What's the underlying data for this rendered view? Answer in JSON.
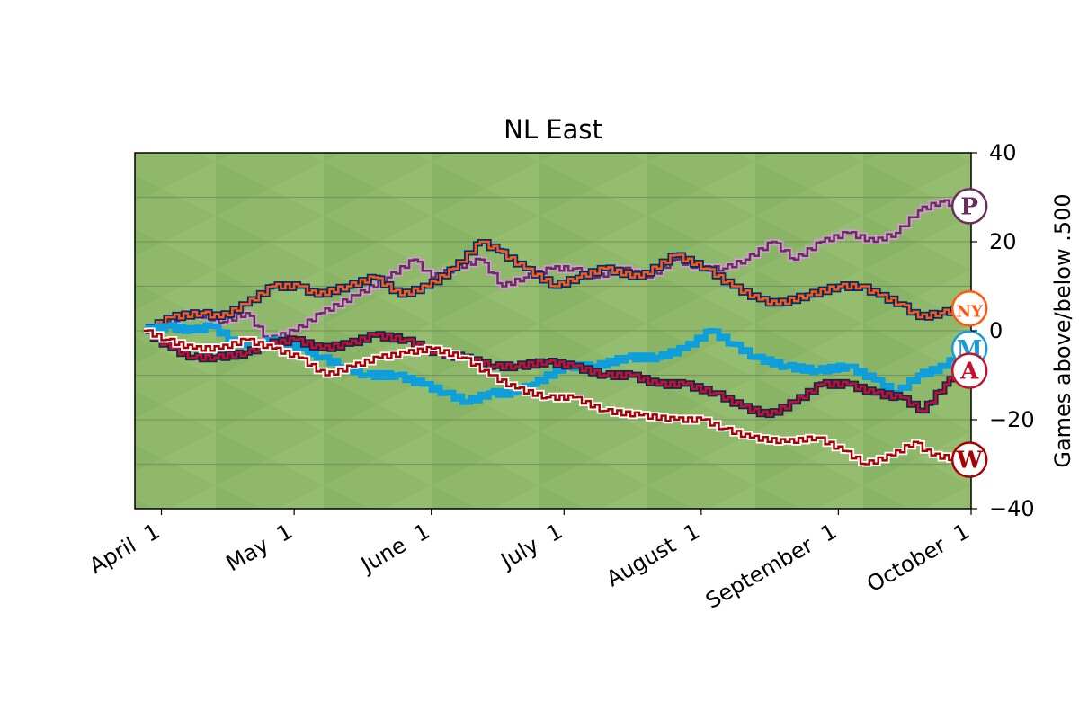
{
  "chart_data": {
    "type": "line",
    "title": "NL East",
    "ylabel": "Games above/below .500",
    "xlabel": "",
    "ylim": [
      -40,
      40
    ],
    "xlim": [
      "2019-03-26",
      "2019-10-01"
    ],
    "y_ticks": [
      40,
      20,
      0,
      -20,
      -40
    ],
    "y_tick_labels": [
      "40",
      "20",
      "0",
      "−20",
      "−40"
    ],
    "x_ticks": [
      "2019-04-01",
      "2019-05-01",
      "2019-06-01",
      "2019-07-01",
      "2019-08-01",
      "2019-09-01",
      "2019-10-01"
    ],
    "x_tick_labels": [
      "April  1",
      "May  1",
      "June  1",
      "July  1",
      "August  1",
      "September  1",
      "October  1"
    ],
    "grid": "horizontal",
    "background": "outfield grass",
    "series": [
      {
        "team": "Phillies",
        "logo_glyph": "P",
        "color": "#6b2d5c",
        "outline": "#c8a2c8",
        "end_label_icon": "phillies-logo-icon",
        "points": [
          [
            "2019-03-28",
            0
          ],
          [
            "2019-04-02",
            2
          ],
          [
            "2019-04-08",
            4
          ],
          [
            "2019-04-15",
            2
          ],
          [
            "2019-04-20",
            4
          ],
          [
            "2019-04-25",
            -2
          ],
          [
            "2019-05-01",
            0
          ],
          [
            "2019-05-07",
            4
          ],
          [
            "2019-05-15",
            8
          ],
          [
            "2019-05-22",
            12
          ],
          [
            "2019-05-28",
            16
          ],
          [
            "2019-06-01",
            12
          ],
          [
            "2019-06-06",
            14
          ],
          [
            "2019-06-12",
            16
          ],
          [
            "2019-06-17",
            10
          ],
          [
            "2019-06-22",
            12
          ],
          [
            "2019-06-28",
            14
          ],
          [
            "2019-07-03",
            14
          ],
          [
            "2019-07-08",
            12
          ],
          [
            "2019-07-14",
            14
          ],
          [
            "2019-07-20",
            12
          ],
          [
            "2019-07-26",
            16
          ],
          [
            "2019-08-01",
            14
          ],
          [
            "2019-08-06",
            14
          ],
          [
            "2019-08-11",
            16
          ],
          [
            "2019-08-17",
            20
          ],
          [
            "2019-08-22",
            16
          ],
          [
            "2019-08-28",
            20
          ],
          [
            "2019-09-03",
            22
          ],
          [
            "2019-09-09",
            20
          ],
          [
            "2019-09-14",
            22
          ],
          [
            "2019-09-19",
            27
          ],
          [
            "2019-09-24",
            29
          ],
          [
            "2019-09-29",
            28
          ]
        ]
      },
      {
        "team": "Mets",
        "logo_glyph": "NY",
        "color": "#ff5910",
        "outline": "#002d72",
        "end_label_icon": "mets-logo-icon",
        "points": [
          [
            "2019-03-28",
            0
          ],
          [
            "2019-04-03",
            3
          ],
          [
            "2019-04-10",
            4
          ],
          [
            "2019-04-14",
            3
          ],
          [
            "2019-04-20",
            6
          ],
          [
            "2019-04-26",
            10
          ],
          [
            "2019-05-02",
            10
          ],
          [
            "2019-05-06",
            8
          ],
          [
            "2019-05-13",
            10
          ],
          [
            "2019-05-19",
            12
          ],
          [
            "2019-05-25",
            8
          ],
          [
            "2019-05-31",
            10
          ],
          [
            "2019-06-06",
            14
          ],
          [
            "2019-06-12",
            20
          ],
          [
            "2019-06-16",
            18
          ],
          [
            "2019-06-22",
            14
          ],
          [
            "2019-06-29",
            10
          ],
          [
            "2019-07-04",
            12
          ],
          [
            "2019-07-10",
            14
          ],
          [
            "2019-07-18",
            12
          ],
          [
            "2019-07-26",
            17
          ],
          [
            "2019-08-02",
            14
          ],
          [
            "2019-08-08",
            10
          ],
          [
            "2019-08-14",
            7
          ],
          [
            "2019-08-18",
            6
          ],
          [
            "2019-08-25",
            8
          ],
          [
            "2019-09-01",
            10
          ],
          [
            "2019-09-06",
            10
          ],
          [
            "2019-09-10",
            8
          ],
          [
            "2019-09-15",
            6
          ],
          [
            "2019-09-19",
            3
          ],
          [
            "2019-09-24",
            4
          ],
          [
            "2019-09-29",
            5
          ]
        ]
      },
      {
        "team": "Marlins",
        "logo_glyph": "M",
        "color": "#1a9bd7",
        "outline": "#00a3e0",
        "end_label_icon": "marlins-logo-icon",
        "points": [
          [
            "2019-03-28",
            0
          ],
          [
            "2019-04-02",
            1
          ],
          [
            "2019-04-08",
            0
          ],
          [
            "2019-04-12",
            1
          ],
          [
            "2019-04-17",
            -2
          ],
          [
            "2019-04-22",
            -4
          ],
          [
            "2019-04-26",
            -2
          ],
          [
            "2019-05-02",
            -4
          ],
          [
            "2019-05-07",
            -6
          ],
          [
            "2019-05-12",
            -8
          ],
          [
            "2019-05-17",
            -10
          ],
          [
            "2019-05-24",
            -10
          ],
          [
            "2019-05-30",
            -12
          ],
          [
            "2019-06-04",
            -14
          ],
          [
            "2019-06-09",
            -16
          ],
          [
            "2019-06-14",
            -14
          ],
          [
            "2019-06-19",
            -14
          ],
          [
            "2019-06-24",
            -12
          ],
          [
            "2019-07-01",
            -8
          ],
          [
            "2019-07-08",
            -8
          ],
          [
            "2019-07-15",
            -6
          ],
          [
            "2019-07-22",
            -6
          ],
          [
            "2019-07-28",
            -4
          ],
          [
            "2019-08-03",
            0
          ],
          [
            "2019-08-08",
            -3
          ],
          [
            "2019-08-13",
            -6
          ],
          [
            "2019-08-20",
            -8
          ],
          [
            "2019-08-27",
            -9
          ],
          [
            "2019-09-03",
            -8
          ],
          [
            "2019-09-09",
            -11
          ],
          [
            "2019-09-14",
            -14
          ],
          [
            "2019-09-19",
            -10
          ],
          [
            "2019-09-25",
            -8
          ],
          [
            "2019-09-29",
            -4
          ]
        ]
      },
      {
        "team": "Braves",
        "logo_glyph": "A",
        "color": "#c8102e",
        "outline": "#13274f",
        "end_label_icon": "braves-logo-icon",
        "points": [
          [
            "2019-03-28",
            0
          ],
          [
            "2019-04-03",
            -4
          ],
          [
            "2019-04-08",
            -6
          ],
          [
            "2019-04-13",
            -6
          ],
          [
            "2019-04-20",
            -5
          ],
          [
            "2019-04-25",
            -3
          ],
          [
            "2019-05-01",
            -2
          ],
          [
            "2019-05-07",
            -4
          ],
          [
            "2019-05-13",
            -3
          ],
          [
            "2019-05-19",
            -1
          ],
          [
            "2019-05-26",
            -2
          ],
          [
            "2019-06-02",
            -5
          ],
          [
            "2019-06-08",
            -6
          ],
          [
            "2019-06-15",
            -8
          ],
          [
            "2019-06-20",
            -8
          ],
          [
            "2019-06-27",
            -7
          ],
          [
            "2019-07-03",
            -8
          ],
          [
            "2019-07-10",
            -10
          ],
          [
            "2019-07-16",
            -10
          ],
          [
            "2019-07-22",
            -12
          ],
          [
            "2019-07-28",
            -12
          ],
          [
            "2019-08-04",
            -14
          ],
          [
            "2019-08-10",
            -17
          ],
          [
            "2019-08-16",
            -19
          ],
          [
            "2019-08-22",
            -16
          ],
          [
            "2019-08-28",
            -12
          ],
          [
            "2019-09-03",
            -12
          ],
          [
            "2019-09-09",
            -14
          ],
          [
            "2019-09-15",
            -15
          ],
          [
            "2019-09-20",
            -18
          ],
          [
            "2019-09-25",
            -12
          ],
          [
            "2019-09-29",
            -9
          ]
        ]
      },
      {
        "team": "Nationals",
        "logo_glyph": "W",
        "color": "#ab0003",
        "outline": "#ffffff",
        "end_label_icon": "nationals-logo-icon",
        "points": [
          [
            "2019-03-28",
            0
          ],
          [
            "2019-04-02",
            -2
          ],
          [
            "2019-04-08",
            -4
          ],
          [
            "2019-04-14",
            -4
          ],
          [
            "2019-04-20",
            -2
          ],
          [
            "2019-04-26",
            -4
          ],
          [
            "2019-05-02",
            -6
          ],
          [
            "2019-05-08",
            -10
          ],
          [
            "2019-05-14",
            -8
          ],
          [
            "2019-05-20",
            -6
          ],
          [
            "2019-05-26",
            -5
          ],
          [
            "2019-06-01",
            -4
          ],
          [
            "2019-06-08",
            -6
          ],
          [
            "2019-06-14",
            -10
          ],
          [
            "2019-06-20",
            -13
          ],
          [
            "2019-06-27",
            -15
          ],
          [
            "2019-07-03",
            -15
          ],
          [
            "2019-07-10",
            -18
          ],
          [
            "2019-07-18",
            -19
          ],
          [
            "2019-07-26",
            -20
          ],
          [
            "2019-08-01",
            -20
          ],
          [
            "2019-08-06",
            -22
          ],
          [
            "2019-08-12",
            -24
          ],
          [
            "2019-08-20",
            -25
          ],
          [
            "2019-08-27",
            -24
          ],
          [
            "2019-09-02",
            -27
          ],
          [
            "2019-09-07",
            -30
          ],
          [
            "2019-09-13",
            -28
          ],
          [
            "2019-09-18",
            -25
          ],
          [
            "2019-09-22",
            -28
          ],
          [
            "2019-09-29",
            -29
          ]
        ]
      }
    ]
  }
}
